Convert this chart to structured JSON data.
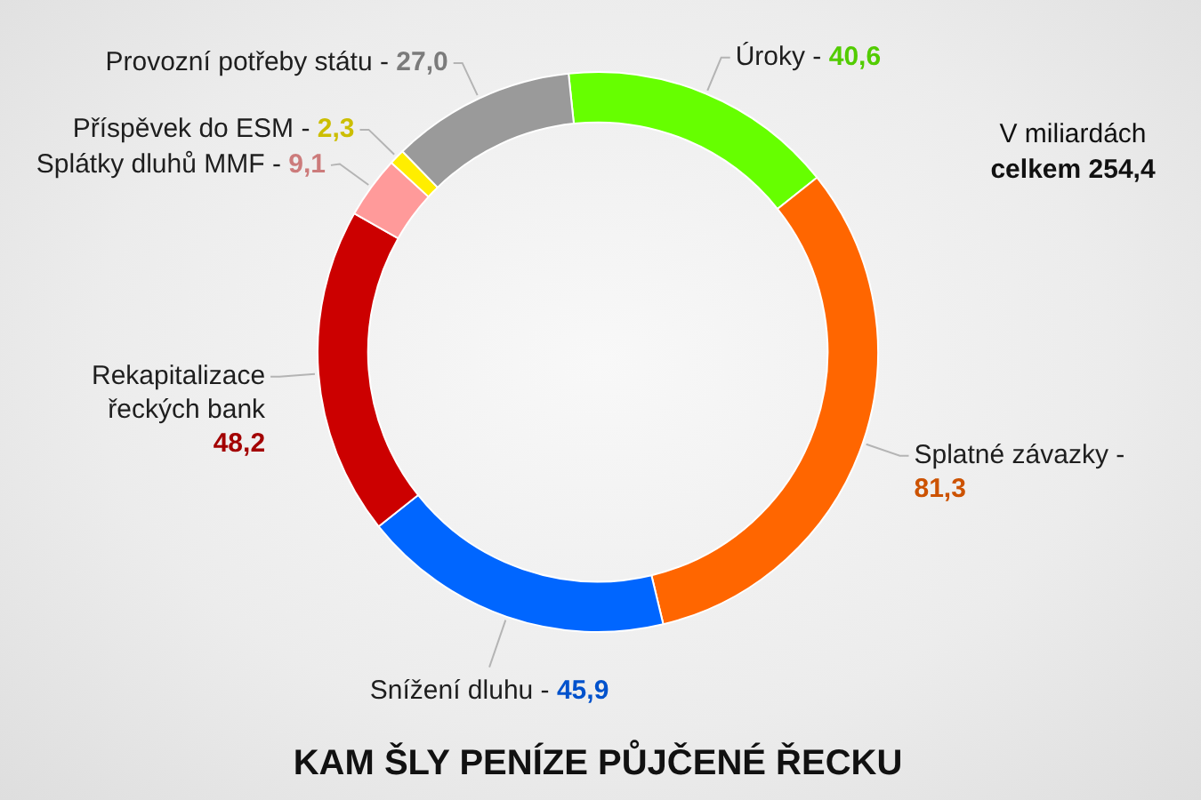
{
  "chart_data": {
    "type": "donut",
    "title": "KAM ŠLY PENÍZE PŮJČENÉ ŘECKU",
    "categories": [
      "Úroky -",
      "Splatné závazky -",
      "Snížení dluhu -",
      "Rekapitalizace řeckých bank",
      "Splátky dluhů MMF -",
      "Příspěvek do ESM -",
      "Provozní potřeby státu -"
    ],
    "values": [
      40.6,
      81.3,
      45.9,
      48.2,
      9.1,
      2.3,
      27.0
    ],
    "colors": [
      "#66ff00",
      "#ff6600",
      "#0066ff",
      "#cc0000",
      "#ff9a9a",
      "#ffee00",
      "#9a9a9a"
    ],
    "value_labels": [
      "40,6",
      "81,3",
      "45,9",
      "48,2",
      "9,1",
      "2,3",
      "27,0"
    ],
    "annotations": [
      "V miliardách",
      "celkem 254,4"
    ]
  }
}
